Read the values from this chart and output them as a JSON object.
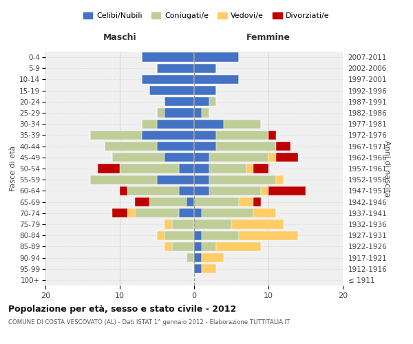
{
  "age_groups": [
    "100+",
    "95-99",
    "90-94",
    "85-89",
    "80-84",
    "75-79",
    "70-74",
    "65-69",
    "60-64",
    "55-59",
    "50-54",
    "45-49",
    "40-44",
    "35-39",
    "30-34",
    "25-29",
    "20-24",
    "15-19",
    "10-14",
    "5-9",
    "0-4"
  ],
  "birth_years": [
    "≤ 1911",
    "1912-1916",
    "1917-1921",
    "1922-1926",
    "1927-1931",
    "1932-1936",
    "1937-1941",
    "1942-1946",
    "1947-1951",
    "1952-1956",
    "1957-1961",
    "1962-1966",
    "1967-1971",
    "1972-1976",
    "1977-1981",
    "1982-1986",
    "1987-1991",
    "1992-1996",
    "1997-2001",
    "2002-2006",
    "2007-2011"
  ],
  "male": {
    "celibi": [
      0,
      0,
      0,
      0,
      0,
      0,
      2,
      1,
      2,
      5,
      2,
      4,
      5,
      7,
      5,
      4,
      4,
      6,
      7,
      5,
      7
    ],
    "coniugati": [
      0,
      0,
      1,
      3,
      4,
      3,
      6,
      5,
      7,
      9,
      8,
      7,
      7,
      7,
      2,
      1,
      0,
      0,
      0,
      0,
      0
    ],
    "vedovi": [
      0,
      0,
      0,
      1,
      1,
      1,
      1,
      0,
      0,
      0,
      0,
      0,
      0,
      0,
      0,
      0,
      0,
      0,
      0,
      0,
      0
    ],
    "divorziati": [
      0,
      0,
      0,
      0,
      0,
      0,
      2,
      2,
      1,
      0,
      3,
      0,
      0,
      0,
      0,
      0,
      0,
      0,
      0,
      0,
      0
    ]
  },
  "female": {
    "nubili": [
      0,
      1,
      1,
      1,
      1,
      0,
      1,
      0,
      2,
      2,
      2,
      2,
      3,
      3,
      4,
      1,
      2,
      3,
      6,
      3,
      6
    ],
    "coniugate": [
      0,
      0,
      0,
      2,
      5,
      5,
      7,
      6,
      7,
      9,
      5,
      8,
      8,
      7,
      5,
      1,
      1,
      0,
      0,
      0,
      0
    ],
    "vedove": [
      0,
      2,
      3,
      6,
      8,
      7,
      3,
      2,
      1,
      1,
      1,
      1,
      0,
      0,
      0,
      0,
      0,
      0,
      0,
      0,
      0
    ],
    "divorziate": [
      0,
      0,
      0,
      0,
      0,
      0,
      0,
      1,
      5,
      0,
      2,
      3,
      2,
      1,
      0,
      0,
      0,
      0,
      0,
      0,
      0
    ]
  },
  "colors": {
    "celibi": "#4472C4",
    "coniugati": "#BFCE99",
    "vedovi": "#FFCC66",
    "divorziati": "#C00000"
  },
  "xlim": 20,
  "title": "Popolazione per età, sesso e stato civile - 2012",
  "subtitle": "COMUNE DI COSTA VESCOVATO (AL) - Dati ISTAT 1° gennaio 2012 - Elaborazione TUTTITALIA.IT",
  "legend_labels": [
    "Celibi/Nubili",
    "Coniugati/e",
    "Vedovi/e",
    "Divorziati/e"
  ],
  "xlabel_left": "Maschi",
  "xlabel_right": "Femmine",
  "ylabel_left": "Fasce di età",
  "ylabel_right": "Anni di nascita",
  "bg_color": "#ffffff",
  "plot_bg_color": "#f0f0f0",
  "grid_color": "#cccccc"
}
